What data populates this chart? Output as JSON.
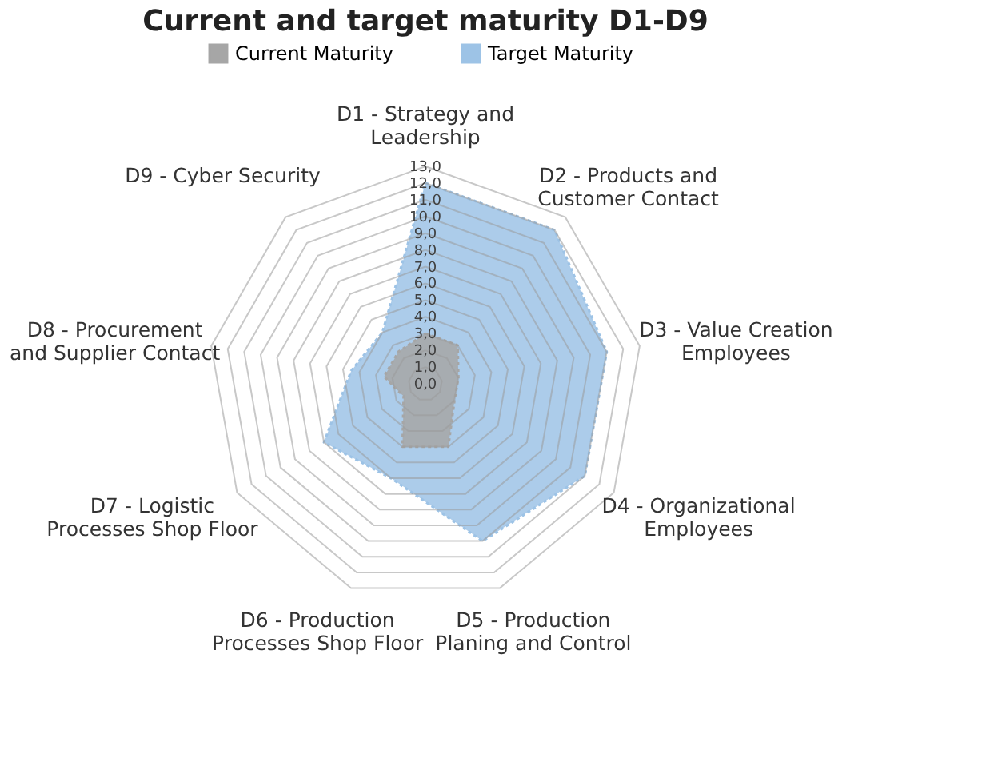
{
  "chart_data": {
    "type": "radar",
    "title": "Current and target maturity D1-D9",
    "categories": [
      "D1 - Strategy and\nLeadership",
      "D2 - Products and\nCustomer Contact",
      "D3 - Value Creation\nEmployees",
      "D4 - Organizational\nEmployees",
      "D5 - Production\nPlaning and Control",
      "D6 - Production\nProcesses Shop Floor",
      "D7 - Logistic\nProcesses Shop Floor",
      "D8 - Procurement\nand Supplier Contact",
      "D9 - Cyber Security"
    ],
    "series": [
      {
        "name": "Current Maturity",
        "color": "#a6a6a6",
        "values": [
          3,
          3,
          2,
          2,
          4,
          4,
          1.5,
          2.5,
          2.5
        ]
      },
      {
        "name": "Target Maturity",
        "color": "#9dc3e6",
        "values": [
          12,
          12,
          11,
          11,
          10,
          6,
          7,
          4.5,
          4
        ]
      }
    ],
    "ylim": [
      0,
      13
    ],
    "yticks": [
      {
        "value": 0,
        "label": "0,0"
      },
      {
        "value": 1,
        "label": "1,0"
      },
      {
        "value": 2,
        "label": "2,0"
      },
      {
        "value": 3,
        "label": "3,0"
      },
      {
        "value": 4,
        "label": "4,0"
      },
      {
        "value": 5,
        "label": "5,0"
      },
      {
        "value": 6,
        "label": "6,0"
      },
      {
        "value": 7,
        "label": "7,0"
      },
      {
        "value": 8,
        "label": "8,0"
      },
      {
        "value": 9,
        "label": "9,0"
      },
      {
        "value": 10,
        "label": "10,0"
      },
      {
        "value": 11,
        "label": "11,0"
      },
      {
        "value": 12,
        "label": "12,0"
      },
      {
        "value": 13,
        "label": "13,0"
      }
    ],
    "grid": true,
    "legend": "top",
    "line_style": "dotted",
    "marker": "none"
  }
}
